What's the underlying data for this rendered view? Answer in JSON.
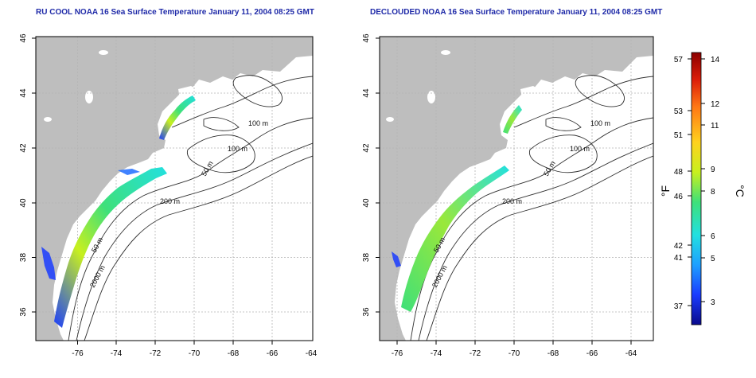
{
  "panels": [
    {
      "title": "RU COOL NOAA 16 Sea Surface Temperature January 11, 2004 08:25 GMT",
      "contour_labels": [
        "100 m",
        "100 m",
        "50 m",
        "200 m",
        "50 m",
        "2000 m"
      ]
    },
    {
      "title": "DECLOUDED NOAA 16 Sea Surface Temperature January 11, 2004 08:25 GMT",
      "contour_labels": [
        "100 m",
        "100 m",
        "50 m",
        "200 m",
        "50 m",
        "2000 m"
      ]
    }
  ],
  "axes": {
    "x_ticks": [
      "-76",
      "-74",
      "-72",
      "-70",
      "-68",
      "-66",
      "-64"
    ],
    "y_ticks": [
      "36",
      "38",
      "40",
      "42",
      "44",
      "46"
    ]
  },
  "colorbar": {
    "unit_f": "°F",
    "unit_c": "°C",
    "f_ticks": [
      "57",
      "53",
      "51",
      "48",
      "46",
      "42",
      "41",
      "37"
    ],
    "c_ticks": [
      "14",
      "12",
      "11",
      "9",
      "8",
      "6",
      "5",
      "3"
    ],
    "colors": [
      "#0a0a8c",
      "#1a3cff",
      "#1ea0ff",
      "#22e0e0",
      "#3ee07a",
      "#c8f01e",
      "#ffd21e",
      "#ff7814",
      "#dc1e0a",
      "#8c0000"
    ]
  },
  "colors": {
    "land": "#bebebe",
    "grid": "#b4b4b4",
    "title": "#1f2aa8",
    "contour": "#303030"
  }
}
